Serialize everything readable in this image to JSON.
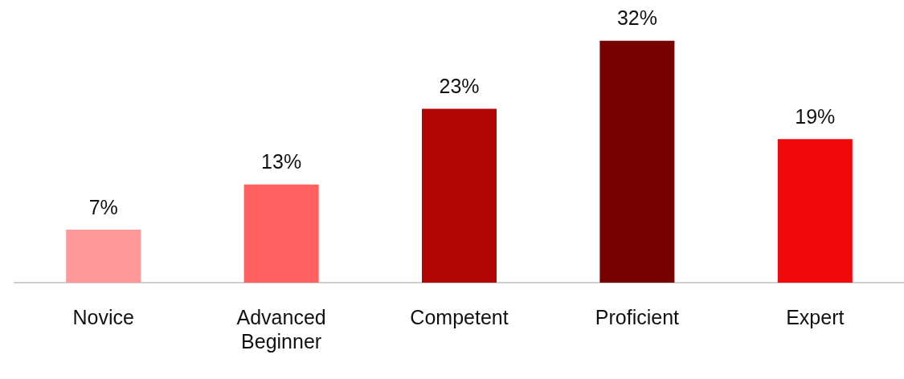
{
  "chart_data": {
    "type": "bar",
    "categories": [
      "Novice",
      "Advanced Beginner",
      "Competent",
      "Proficient",
      "Expert"
    ],
    "values": [
      7,
      13,
      23,
      32,
      19
    ],
    "colors": [
      "#ff9999",
      "#ff6060",
      "#b00505",
      "#770000",
      "#ee0808"
    ],
    "value_labels": [
      "7%",
      "13%",
      "23%",
      "32%",
      "19%"
    ],
    "grid": false,
    "legend": false
  }
}
